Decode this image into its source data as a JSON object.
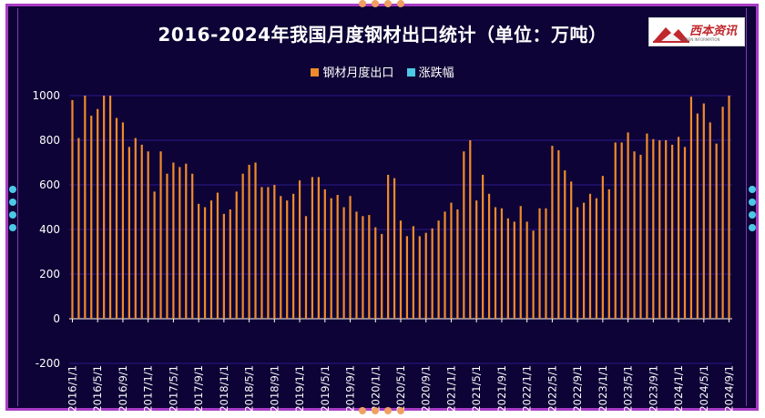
{
  "title": "2016-2024年我国月度钢材出口统计（单位：万吨）",
  "logo": {
    "text": "西本资讯",
    "sub": "XIBEN INFORMATION"
  },
  "colors": {
    "export": "#ef8a2b",
    "change": "#4cc9e6",
    "panel_bg": "#0d0336",
    "grid": "#2a1a8c",
    "border": "#a83bc4",
    "dot_bottom": "#f0a060"
  },
  "chart_data": {
    "type": "bar",
    "title": "2016-2024年我国月度钢材出口统计（单位：万吨）",
    "xlabel": "",
    "ylabel": "",
    "ylim": [
      -200,
      1000
    ],
    "yticks": [
      -200,
      0,
      200,
      400,
      600,
      800,
      1000
    ],
    "grid": true,
    "legend_position": "top",
    "x_tick_labels": [
      "2016/1/1",
      "2016/5/1",
      "2016/9/1",
      "2017/1/1",
      "2017/5/1",
      "2017/9/1",
      "2018/1/1",
      "2018/5/1",
      "2018/9/1",
      "2019/1/1",
      "2019/5/1",
      "2019/9/1",
      "2020/1/1",
      "2020/5/1",
      "2020/9/1",
      "2021/1/1",
      "2021/5/1",
      "2021/9/1",
      "2022/1/1",
      "2022/5/1",
      "2022/9/1",
      "2023/1/1",
      "2023/5/1",
      "2023/9/1",
      "2024/1/1",
      "2024/5/1",
      "2024/9/1"
    ],
    "series": [
      {
        "name": "钢材月度出口",
        "color": "#ef8a2b",
        "values": [
          980,
          810,
          1000,
          910,
          940,
          1000,
          1000,
          900,
          880,
          770,
          810,
          780,
          750,
          570,
          750,
          650,
          700,
          680,
          695,
          650,
          515,
          500,
          530,
          565,
          470,
          490,
          570,
          650,
          690,
          700,
          590,
          590,
          600,
          550,
          530,
          560,
          620,
          460,
          635,
          635,
          580,
          540,
          555,
          500,
          550,
          480,
          460,
          465,
          410,
          380,
          645,
          630,
          440,
          370,
          415,
          370,
          385,
          405,
          440,
          480,
          520,
          490,
          750,
          800,
          530,
          645,
          560,
          500,
          495,
          450,
          435,
          505,
          435,
          395,
          495,
          495,
          775,
          755,
          665,
          615,
          500,
          520,
          560,
          540,
          640,
          580,
          790,
          790,
          835,
          750,
          735,
          830,
          805,
          800,
          800,
          780,
          815,
          770,
          995,
          920,
          965,
          880,
          785,
          950,
          1000
        ]
      },
      {
        "name": "涨跌幅",
        "color": "#4cc9e6",
        "values": []
      }
    ]
  }
}
